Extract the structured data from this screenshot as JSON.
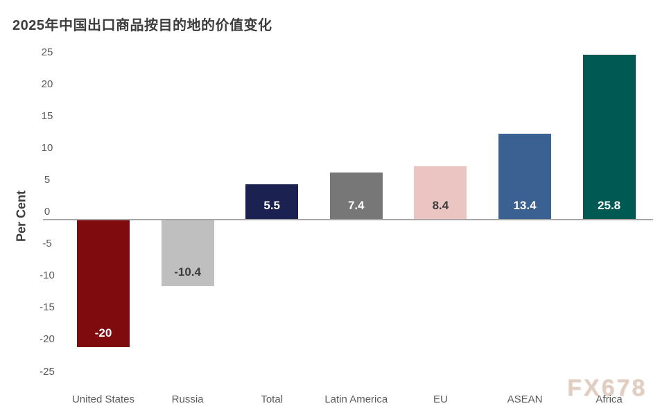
{
  "title": "2025年中国出口商品按目的地的价值变化",
  "watermark": "FX678",
  "chart_data": {
    "type": "bar",
    "title": "2025年中国出口商品按目的地的价值变化",
    "categories": [
      "United States",
      "Russia",
      "Total",
      "Latin America",
      "EU",
      "ASEAN",
      "Africa"
    ],
    "values": [
      -20,
      -10.4,
      5.5,
      7.4,
      8.4,
      13.4,
      25.8
    ],
    "value_labels": [
      "-20",
      "-10.4",
      "5.5",
      "7.4",
      "8.4",
      "13.4",
      "25.8"
    ],
    "bar_colors": [
      "#800B0E",
      "#BFBFBF",
      "#1B2150",
      "#777777",
      "#EBC5C1",
      "#3A6191",
      "#005A53"
    ],
    "value_label_colors": [
      "#FFFFFF",
      "#3D3D3D",
      "#FFFFFF",
      "#FFFFFF",
      "#3D3D3D",
      "#FFFFFF",
      "#FFFFFF"
    ],
    "xlabel": "",
    "ylabel": "Per Cent",
    "ylim": [
      -25,
      25
    ],
    "yticks": [
      25,
      20,
      15,
      10,
      5,
      0,
      -5,
      -10,
      -15,
      -20,
      -25
    ],
    "grid": false,
    "legend": false
  },
  "colors": {
    "axis_line": "#A6A6A6",
    "tick_text": "#595959",
    "category_text": "#595959",
    "title_text": "#3D3D3D",
    "watermark_text": "#D8C3B2",
    "background": "#FFFFFF"
  }
}
